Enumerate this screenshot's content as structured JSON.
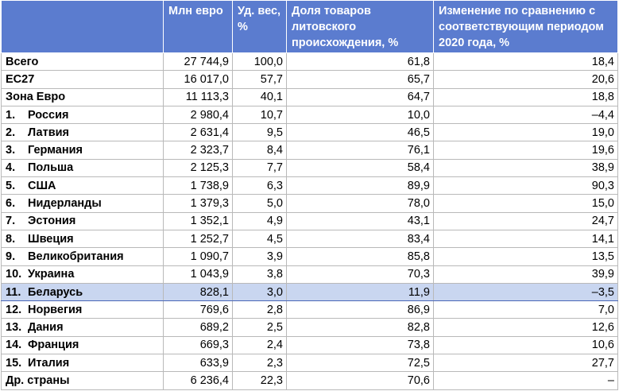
{
  "header": {
    "col0": "",
    "col1": "Млн евро",
    "col2": "Уд. вес, %",
    "col3": "Доля товаров литовского происхождения, %",
    "col4": "Изменение по сравнению с соответствующим периодом 2020 года, %"
  },
  "rows": [
    {
      "rank": "",
      "name": "Всего",
      "value": "27 744,9",
      "share": "100,0",
      "lt_share": "61,8",
      "change": "18,4",
      "highlight": false
    },
    {
      "rank": "",
      "name": "ЕС27",
      "value": "16 017,0",
      "share": "57,7",
      "lt_share": "65,7",
      "change": "20,6",
      "highlight": false
    },
    {
      "rank": "",
      "name": "Зона Евро",
      "value": "11 113,3",
      "share": "40,1",
      "lt_share": "64,7",
      "change": "18,8",
      "highlight": false
    },
    {
      "rank": "1.",
      "name": "Россия",
      "value": "2 980,4",
      "share": "10,7",
      "lt_share": "10,0",
      "change": "–4,4",
      "highlight": false
    },
    {
      "rank": "2.",
      "name": "Латвия",
      "value": "2 631,4",
      "share": "9,5",
      "lt_share": "46,5",
      "change": "19,0",
      "highlight": false
    },
    {
      "rank": "3.",
      "name": "Германия",
      "value": "2 323,7",
      "share": "8,4",
      "lt_share": "76,1",
      "change": "19,6",
      "highlight": false
    },
    {
      "rank": "4.",
      "name": "Польша",
      "value": "2 125,3",
      "share": "7,7",
      "lt_share": "58,4",
      "change": "38,9",
      "highlight": false
    },
    {
      "rank": "5.",
      "name": "США",
      "value": "1 738,9",
      "share": "6,3",
      "lt_share": "89,9",
      "change": "90,3",
      "highlight": false
    },
    {
      "rank": "6.",
      "name": "Нидерланды",
      "value": "1 379,3",
      "share": "5,0",
      "lt_share": "78,0",
      "change": "15,0",
      "highlight": false
    },
    {
      "rank": "7.",
      "name": "Эстония",
      "value": "1 352,1",
      "share": "4,9",
      "lt_share": "43,1",
      "change": "24,7",
      "highlight": false
    },
    {
      "rank": "8.",
      "name": "Швеция",
      "value": "1 252,7",
      "share": "4,5",
      "lt_share": "83,4",
      "change": "14,1",
      "highlight": false
    },
    {
      "rank": "9.",
      "name": "Великобритания",
      "value": "1 090,7",
      "share": "3,9",
      "lt_share": "85,8",
      "change": "13,5",
      "highlight": false
    },
    {
      "rank": "10.",
      "name": "Украина",
      "value": "1 043,9",
      "share": "3,8",
      "lt_share": "70,3",
      "change": "39,9",
      "highlight": false
    },
    {
      "rank": "11.",
      "name": "Беларусь",
      "value": "828,1",
      "share": "3,0",
      "lt_share": "11,9",
      "change": "–3,5",
      "highlight": true
    },
    {
      "rank": "12.",
      "name": "Норвегия",
      "value": "769,6",
      "share": "2,8",
      "lt_share": "86,9",
      "change": "7,0",
      "highlight": false
    },
    {
      "rank": "13.",
      "name": "Дания",
      "value": "689,2",
      "share": "2,5",
      "lt_share": "82,8",
      "change": "12,6",
      "highlight": false
    },
    {
      "rank": "14.",
      "name": "Франция",
      "value": "669,3",
      "share": "2,4",
      "lt_share": "73,8",
      "change": "10,6",
      "highlight": false
    },
    {
      "rank": "15.",
      "name": "Италия",
      "value": "633,9",
      "share": "2,3",
      "lt_share": "72,5",
      "change": "27,7",
      "highlight": false
    },
    {
      "rank": "",
      "name": "Др. страны",
      "value": "6 236,4",
      "share": "22,3",
      "lt_share": "70,6",
      "change": "–",
      "highlight": false
    }
  ]
}
